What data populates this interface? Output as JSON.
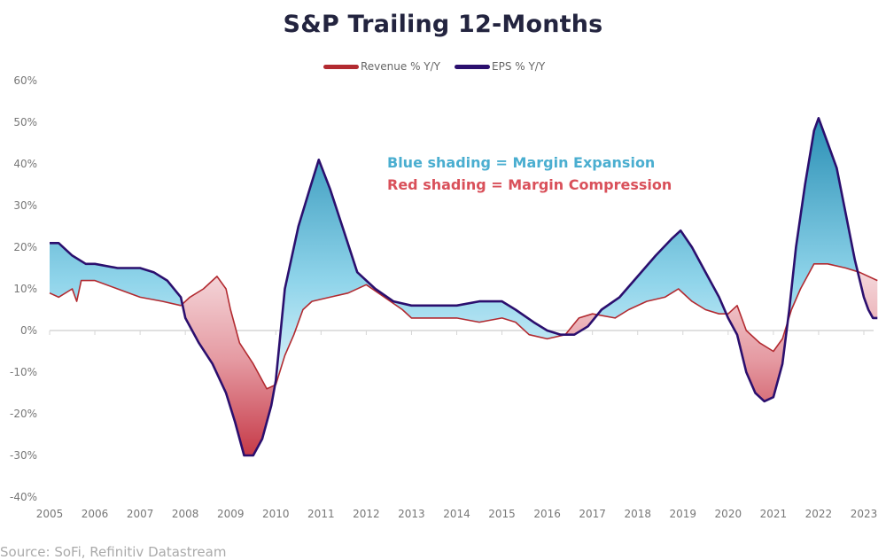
{
  "chart_data": {
    "type": "area",
    "title": "S&P Trailing 12-Months",
    "xlabel": "",
    "ylabel": "",
    "xlim": [
      2005,
      2023.3
    ],
    "ylim": [
      -40,
      60
    ],
    "y_ticks": [
      "60%",
      "50%",
      "40%",
      "30%",
      "20%",
      "10%",
      "0%",
      "-10%",
      "-20%",
      "-30%",
      "-40%"
    ],
    "y_tick_values": [
      60,
      50,
      40,
      30,
      20,
      10,
      0,
      -10,
      -20,
      -30,
      -40
    ],
    "x_ticks": [
      "2005",
      "2006",
      "2007",
      "2008",
      "2009",
      "2010",
      "2011",
      "2012",
      "2013",
      "2014",
      "2015",
      "2016",
      "2017",
      "2018",
      "2019",
      "2020",
      "2021",
      "2022",
      "2023"
    ],
    "grid": false,
    "legend_placement": "top-center",
    "annotations": [
      "Blue shading = Margin Expansion",
      "Red shading = Margin Compression"
    ],
    "source": "Source: SoFi, Refinitiv Datastream",
    "colors": {
      "revenue": "#b22a30",
      "eps": "#2b0f6e",
      "expansion": "#4aaed0",
      "compression": "#d9505a"
    },
    "series": [
      {
        "name": "Revenue % Y/Y",
        "x": [
          2005,
          2005.2,
          2005.5,
          2005.6,
          2005.7,
          2006,
          2006.5,
          2007,
          2007.5,
          2007.9,
          2008.1,
          2008.4,
          2008.7,
          2008.9,
          2009.0,
          2009.2,
          2009.5,
          2009.8,
          2010.0,
          2010.2,
          2010.4,
          2010.6,
          2010.8,
          2011.2,
          2011.6,
          2012.0,
          2012.4,
          2012.8,
          2013,
          2013.5,
          2014,
          2014.5,
          2015,
          2015.3,
          2015.6,
          2016,
          2016.4,
          2016.7,
          2017,
          2017.5,
          2017.8,
          2018.2,
          2018.6,
          2018.9,
          2019.2,
          2019.5,
          2019.8,
          2020.0,
          2020.2,
          2020.4,
          2020.7,
          2021.0,
          2021.2,
          2021.4,
          2021.6,
          2021.9,
          2022.2,
          2022.6,
          2022.9,
          2023.3
        ],
        "y": [
          9,
          8,
          10,
          7,
          12,
          12,
          10,
          8,
          7,
          6,
          8,
          10,
          13,
          10,
          5,
          -3,
          -8,
          -14,
          -13,
          -6,
          -1,
          5,
          7,
          8,
          9,
          11,
          8,
          5,
          3,
          3,
          3,
          2,
          3,
          2,
          -1,
          -2,
          -1,
          3,
          4,
          3,
          5,
          7,
          8,
          10,
          7,
          5,
          4,
          4,
          6,
          0,
          -3,
          -5,
          -2,
          5,
          10,
          16,
          16,
          15,
          14,
          12
        ]
      },
      {
        "name": "EPS % Y/Y",
        "x": [
          2005,
          2005.2,
          2005.5,
          2005.8,
          2006,
          2006.5,
          2007,
          2007.3,
          2007.6,
          2007.9,
          2008.0,
          2008.3,
          2008.6,
          2008.9,
          2009.1,
          2009.3,
          2009.5,
          2009.7,
          2009.9,
          2010.0,
          2010.2,
          2010.5,
          2010.75,
          2010.95,
          2011.2,
          2011.5,
          2011.8,
          2012.2,
          2012.6,
          2013,
          2013.5,
          2014,
          2014.5,
          2015,
          2015.3,
          2015.7,
          2016,
          2016.3,
          2016.6,
          2016.9,
          2017.2,
          2017.6,
          2018,
          2018.4,
          2018.75,
          2018.95,
          2019.2,
          2019.5,
          2019.8,
          2020.0,
          2020.2,
          2020.4,
          2020.6,
          2020.8,
          2021.0,
          2021.2,
          2021.35,
          2021.5,
          2021.7,
          2021.9,
          2022.0,
          2022.2,
          2022.4,
          2022.6,
          2022.8,
          2023.0,
          2023.1,
          2023.2,
          2023.3
        ],
        "y": [
          21,
          21,
          18,
          16,
          16,
          15,
          15,
          14,
          12,
          8,
          3,
          -3,
          -8,
          -15,
          -22,
          -30,
          -30,
          -26,
          -18,
          -12,
          10,
          25,
          34,
          41,
          34,
          24,
          14,
          10,
          7,
          6,
          6,
          6,
          7,
          7,
          5,
          2,
          0,
          -1,
          -1,
          1,
          5,
          8,
          13,
          18,
          22,
          24,
          20,
          14,
          8,
          3,
          -1,
          -10,
          -15,
          -17,
          -16,
          -8,
          5,
          20,
          35,
          48,
          51,
          45,
          39,
          28,
          17,
          8,
          5,
          3,
          3
        ]
      }
    ]
  }
}
